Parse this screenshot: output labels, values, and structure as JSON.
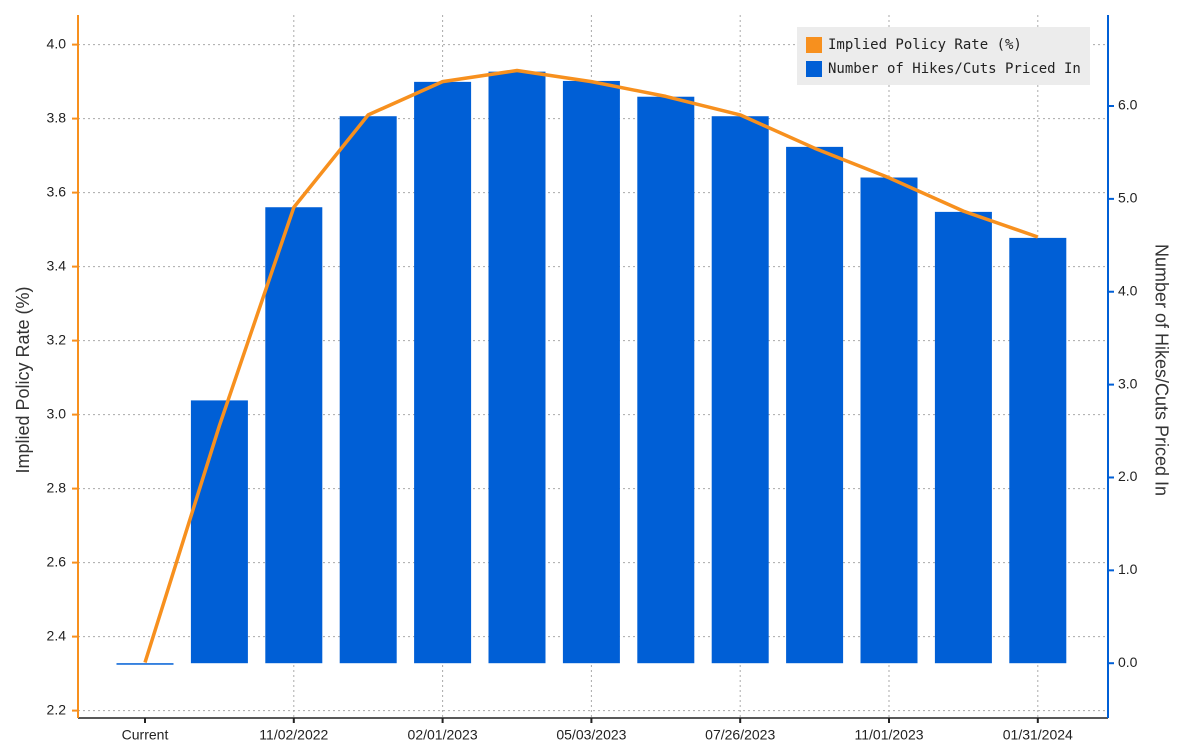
{
  "chart_data": {
    "type": "bar_line",
    "categories": [
      "Current",
      null,
      "11/02/2022",
      null,
      "02/01/2023",
      null,
      "05/03/2023",
      null,
      "07/26/2023",
      null,
      "11/01/2023",
      null,
      "01/31/2024"
    ],
    "series": [
      {
        "name": "Implied Policy Rate (%)",
        "type": "line",
        "color": "#f7901e",
        "axis": "y",
        "values": [
          2.33,
          2.97,
          3.56,
          3.81,
          3.9,
          3.93,
          3.9,
          3.86,
          3.81,
          3.72,
          3.64,
          3.55,
          3.48
        ]
      },
      {
        "name": "Number of Hikes/Cuts Priced In",
        "type": "bar",
        "color": "#005fd6",
        "axis": "y2",
        "values": [
          0,
          2.83,
          4.91,
          5.89,
          6.26,
          6.37,
          6.27,
          6.1,
          5.89,
          5.56,
          5.23,
          4.86,
          4.58
        ]
      }
    ],
    "ylabel": "Implied Policy Rate (%)",
    "y2label": "Number of Hikes/Cuts Priced In",
    "ylim": [
      2.18,
      4.08
    ],
    "yticks": [
      2.2,
      2.4,
      2.6,
      2.8,
      {
        "value": 3,
        "label": "3.0"
      },
      3.2,
      3.4,
      3.6,
      3.8,
      {
        "value": 4,
        "label": "4.0"
      }
    ],
    "y2lim": [
      -0.59,
      6.98
    ],
    "y2ticks": [
      {
        "value": 0,
        "label": "0.0"
      },
      {
        "value": 1,
        "label": "1.0"
      },
      {
        "value": 2,
        "label": "2.0"
      },
      {
        "value": 3,
        "label": "3.0"
      },
      {
        "value": 4,
        "label": "4.0"
      },
      {
        "value": 5,
        "label": "5.0"
      },
      {
        "value": 6,
        "label": "6.0"
      }
    ],
    "grid": true,
    "legend": "upper right"
  }
}
